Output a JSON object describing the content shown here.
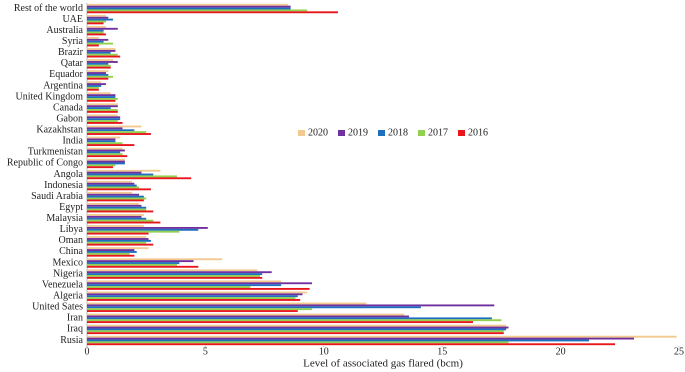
{
  "chart_data": {
    "type": "bar",
    "orientation": "horizontal",
    "x_label": "Level of associated gas flared (bcm)",
    "categories": [
      "Rest of the world",
      "UAE",
      "Australia",
      "Syria",
      "Brazir",
      "Qatar",
      "Equador",
      "Argentina",
      "United Kingdom",
      "Canada",
      "Gabon",
      "Kazakhstan",
      "India",
      "Turkmenistan",
      "Republic of Congo",
      "Angola",
      "Indonesia",
      "Saudi Arabia",
      "Egypt",
      "Malaysia",
      "Libya",
      "Oman",
      "China",
      "Mexico",
      "Nigeria",
      "Venezuela",
      "Algeria",
      "United Sates",
      "Iran",
      "Iraq",
      "Rusia"
    ],
    "series": [
      {
        "name": "2020",
        "color": "#f2c98f",
        "values": [
          8.5,
          0.8,
          0.8,
          0.5,
          1.2,
          1.1,
          0.9,
          0.6,
          1.0,
          1.3,
          1.3,
          2.3,
          1.4,
          1.5,
          1.6,
          3.1,
          1.9,
          1.9,
          2.2,
          2.4,
          2.4,
          2.5,
          2.6,
          5.7,
          7.2,
          8.2,
          9.3,
          11.8,
          13.4,
          17.7,
          24.9
        ]
      },
      {
        "name": "2019",
        "color": "#7030a0",
        "values": [
          8.6,
          0.9,
          1.3,
          0.9,
          1.2,
          1.3,
          0.8,
          0.8,
          1.2,
          1.3,
          1.4,
          1.5,
          1.2,
          1.6,
          1.6,
          2.3,
          2.0,
          2.2,
          2.3,
          2.3,
          5.1,
          2.6,
          2.0,
          4.5,
          7.8,
          9.5,
          9.1,
          17.2,
          13.6,
          17.8,
          23.1
        ]
      },
      {
        "name": "2018",
        "color": "#1f6fbf",
        "values": [
          8.6,
          1.1,
          0.7,
          0.7,
          1.0,
          0.9,
          0.9,
          0.6,
          1.2,
          1.0,
          1.4,
          2.0,
          1.2,
          1.4,
          1.6,
          2.8,
          2.1,
          2.4,
          2.5,
          2.5,
          4.7,
          2.7,
          2.1,
          3.9,
          7.4,
          8.2,
          8.9,
          14.1,
          17.1,
          17.7,
          21.2
        ]
      },
      {
        "name": "2017",
        "color": "#92d050",
        "values": [
          9.3,
          0.8,
          0.7,
          1.1,
          1.3,
          1.0,
          1.1,
          0.5,
          1.3,
          1.3,
          1.3,
          2.5,
          1.5,
          1.5,
          1.2,
          3.8,
          2.2,
          2.5,
          2.5,
          2.8,
          3.9,
          2.5,
          1.8,
          3.8,
          7.3,
          6.9,
          8.8,
          9.5,
          17.5,
          17.6,
          17.8
        ]
      },
      {
        "name": "2016",
        "color": "#e8161b",
        "values": [
          10.6,
          0.7,
          0.8,
          0.5,
          1.4,
          1.0,
          0.9,
          0.5,
          1.2,
          1.3,
          1.5,
          2.7,
          2.0,
          1.7,
          1.1,
          4.4,
          2.7,
          2.4,
          2.8,
          3.1,
          2.6,
          2.8,
          2.0,
          4.7,
          7.4,
          9.4,
          9.0,
          8.9,
          16.3,
          17.6,
          22.3
        ]
      }
    ],
    "xlim": [
      0,
      25
    ],
    "xticks": [
      0,
      5,
      10,
      15,
      20,
      25
    ],
    "legend": "center"
  }
}
